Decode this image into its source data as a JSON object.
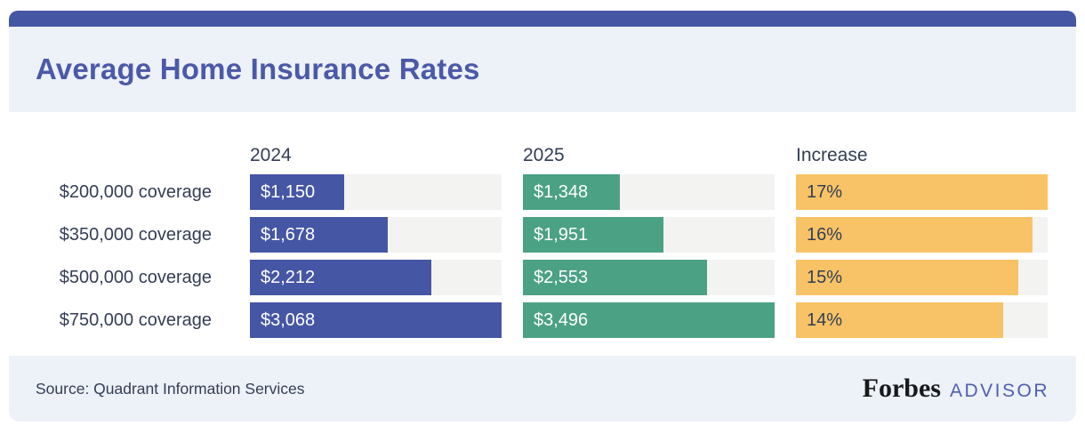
{
  "header": {
    "title": "Average Home Insurance Rates"
  },
  "chart_data": {
    "type": "bar",
    "title": "Average Home Insurance Rates",
    "orientation": "horizontal",
    "grid": false,
    "legend_position": "none",
    "categories": [
      "$200,000 coverage",
      "$350,000 coverage",
      "$500,000 coverage",
      "$750,000 coverage"
    ],
    "columns": [
      {
        "label": "2024",
        "values": [
          1150,
          1678,
          2212,
          3068
        ],
        "display": [
          "$1,150",
          "$1,678",
          "$2,212",
          "$3,068"
        ],
        "axis_max": 3068,
        "bar_color": "#4556a4",
        "value_text_color": "#ffffff"
      },
      {
        "label": "2025",
        "values": [
          1348,
          1951,
          2553,
          3496
        ],
        "display": [
          "$1,348",
          "$1,951",
          "$2,553",
          "$3,496"
        ],
        "axis_max": 3496,
        "bar_color": "#4ba184",
        "value_text_color": "#ffffff"
      },
      {
        "label": "Increase",
        "values": [
          17,
          16,
          15,
          14
        ],
        "display": [
          "17%",
          "16%",
          "15%",
          "14%"
        ],
        "axis_max": 17,
        "bar_color": "#f8c366",
        "value_text_color": "#333e55"
      }
    ],
    "track_color": "#f3f3f1"
  },
  "colors": {
    "accent_bar": "#4556a4",
    "title_text": "#4b59a8",
    "panel_background": "#edf1f8",
    "body_text": "#333e55",
    "bar_2024": "#4556a4",
    "bar_2025": "#4ba184",
    "bar_increase": "#f8c366",
    "bar_track": "#f3f3f1",
    "advisor_text": "#4f5fae",
    "forbes_text": "#17191c"
  },
  "footer": {
    "source": "Source: Quadrant Information Services",
    "brand": {
      "forbes": "Forbes",
      "advisor": "ADVISOR"
    }
  }
}
